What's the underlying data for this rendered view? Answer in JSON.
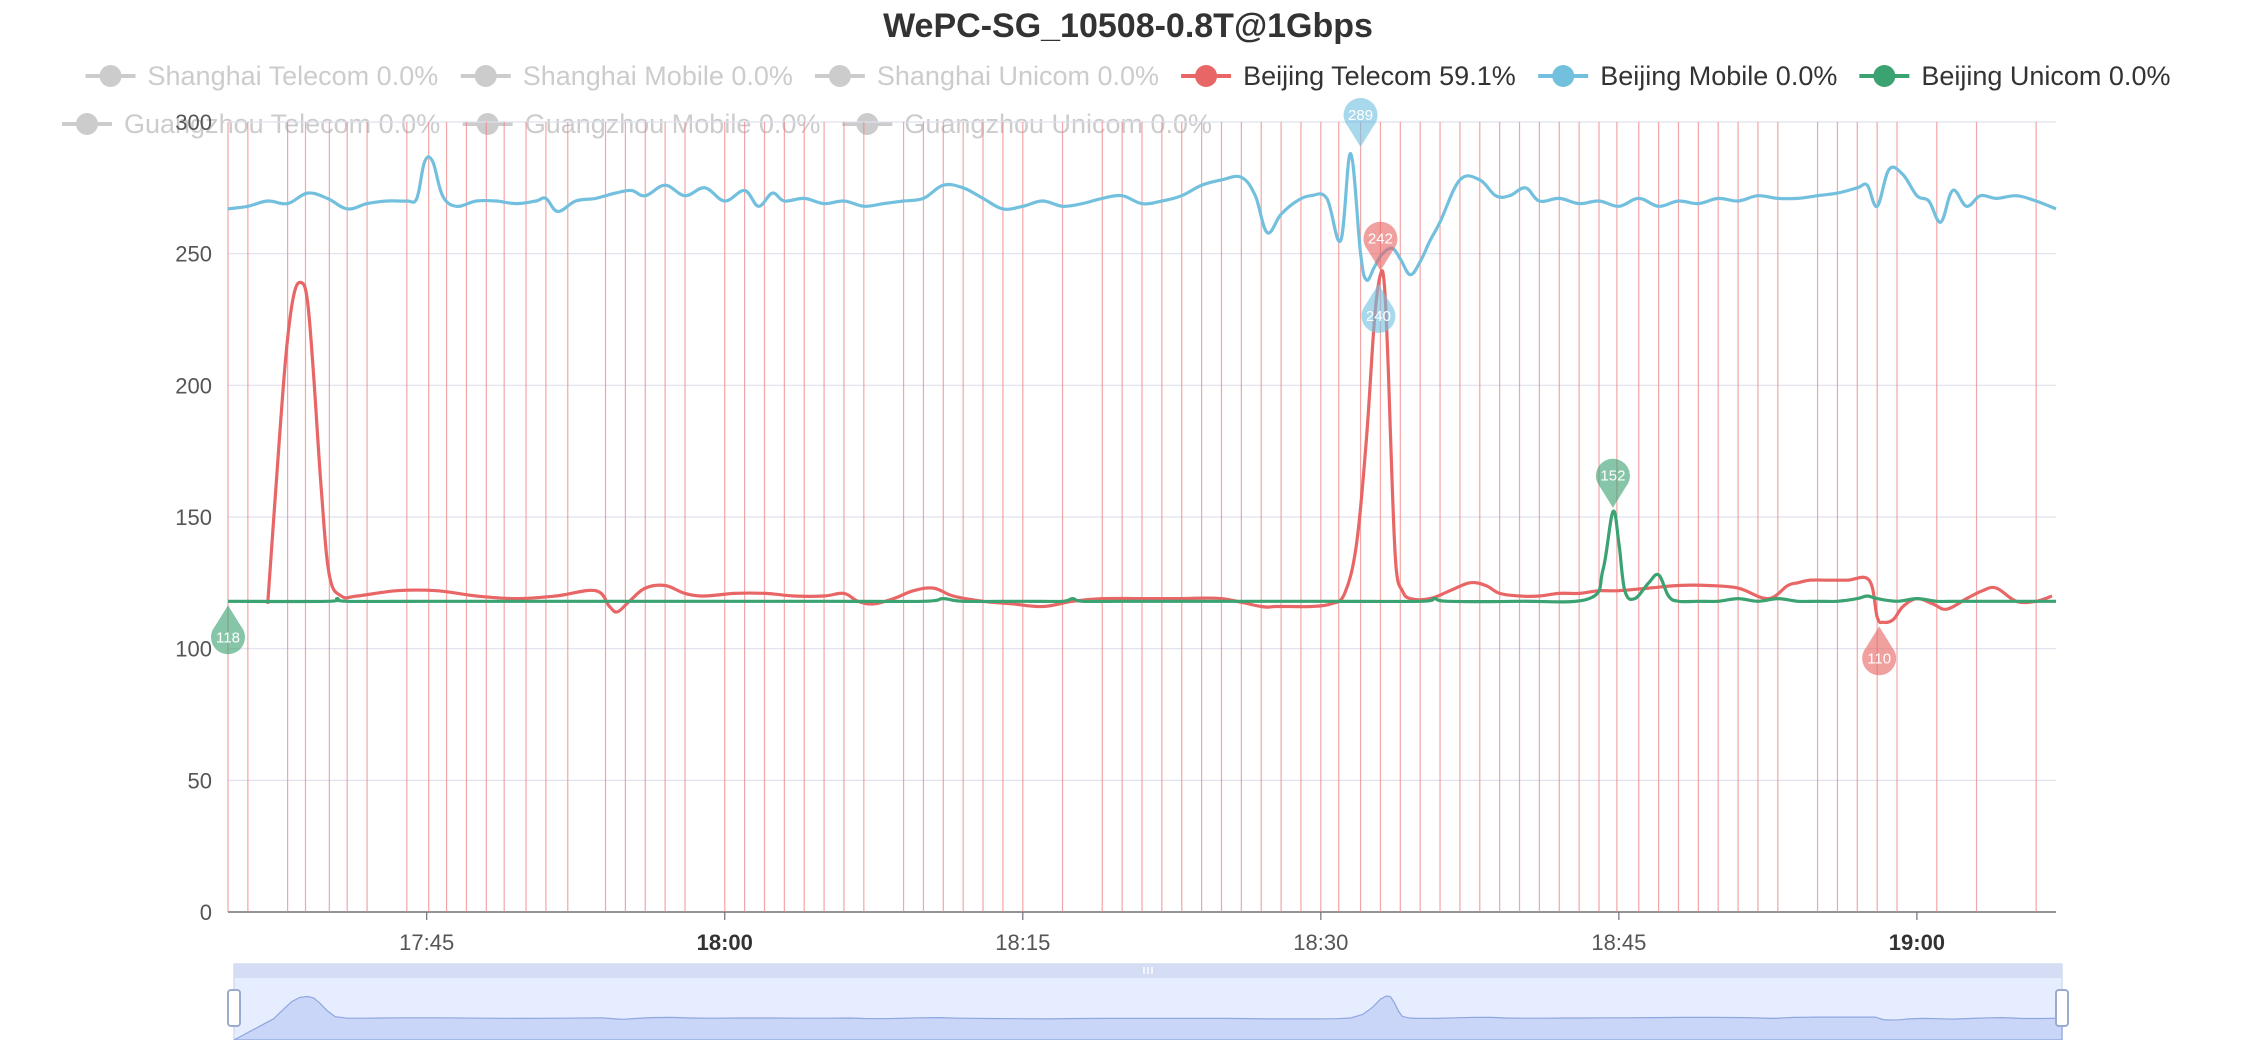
{
  "chart_data": {
    "type": "line",
    "title": "WePC-SG_10508-0.8T@1Gbps",
    "xlabel": "",
    "ylabel": "",
    "ylim": [
      0,
      300
    ],
    "yticks": [
      0,
      50,
      100,
      150,
      200,
      250,
      300
    ],
    "xlim_minutes": [
      1055,
      1147
    ],
    "xticks": [
      {
        "minute": 1065,
        "label": "17:45",
        "bold": false
      },
      {
        "minute": 1080,
        "label": "18:00",
        "bold": true
      },
      {
        "minute": 1095,
        "label": "18:15",
        "bold": false
      },
      {
        "minute": 1110,
        "label": "18:30",
        "bold": false
      },
      {
        "minute": 1125,
        "label": "18:45",
        "bold": false
      },
      {
        "minute": 1140,
        "label": "19:00",
        "bold": true
      }
    ],
    "grid": true,
    "legend_position": "top",
    "legend": [
      {
        "label": "Shanghai Telecom 0.0%",
        "color": "#cccccc",
        "active": false
      },
      {
        "label": "Shanghai Mobile 0.0%",
        "color": "#cccccc",
        "active": false
      },
      {
        "label": "Shanghai Unicom 0.0%",
        "color": "#cccccc",
        "active": false
      },
      {
        "label": "Beijing Telecom 59.1%",
        "color": "#e86666",
        "active": true
      },
      {
        "label": "Beijing Mobile 0.0%",
        "color": "#73c0de",
        "active": true
      },
      {
        "label": "Beijing Unicom 0.0%",
        "color": "#3ba272",
        "active": true
      },
      {
        "label": "Guangzhou Telecom 0.0%",
        "color": "#cccccc",
        "active": false
      },
      {
        "label": "Guangzhou Mobile 0.0%",
        "color": "#cccccc",
        "active": false
      },
      {
        "label": "Guangzhou Unicom 0.0%",
        "color": "#cccccc",
        "active": false
      }
    ],
    "loss_marker_minutes": [
      1055,
      1056,
      1058,
      1058.9,
      1060.1,
      1061,
      1062,
      1064,
      1065.1,
      1066,
      1067,
      1068,
      1068.9,
      1070,
      1071,
      1072.1,
      1074,
      1075,
      1076,
      1077,
      1078,
      1080,
      1081,
      1082,
      1083,
      1084,
      1085,
      1086,
      1087,
      1089,
      1090,
      1091,
      1092,
      1093,
      1094,
      1095,
      1097,
      1099,
      1100,
      1101,
      1102,
      1103,
      1104,
      1105,
      1106,
      1107,
      1108,
      1109,
      1110,
      1110.9,
      1112,
      1113,
      1114,
      1115,
      1116,
      1117,
      1118,
      1119,
      1120,
      1121,
      1122,
      1123,
      1124,
      1124.9,
      1126,
      1127,
      1128,
      1129,
      1130,
      1131,
      1132,
      1133,
      1135,
      1136,
      1137,
      1138,
      1139,
      1141,
      1143,
      1146
    ],
    "series": [
      {
        "name": "Beijing Telecom 59.1%",
        "color": "#e86666",
        "x": [
          1057.0,
          1057.4,
          1057.9,
          1058.3,
          1058.7,
          1059.0,
          1059.3,
          1059.7,
          1060.1,
          1060.7,
          1061.5,
          1063.5,
          1065.5,
          1067.5,
          1069.5,
          1071.5,
          1073.5,
          1074.2,
          1074.6,
          1075.2,
          1076.0,
          1077.0,
          1078.0,
          1079.0,
          1080.5,
          1082.0,
          1083.5,
          1085.0,
          1086.0,
          1086.7,
          1087.5,
          1088.5,
          1089.5,
          1090.5,
          1091.5,
          1093.0,
          1094.5,
          1096.0,
          1097.5,
          1099.0,
          1101.0,
          1103.0,
          1105.0,
          1107.0,
          1107.7,
          1108.5,
          1109.5,
          1110.5,
          1111.2,
          1111.8,
          1112.3,
          1112.7,
          1113.0,
          1113.2,
          1113.4,
          1113.6,
          1113.8,
          1114.1,
          1114.5,
          1115.5,
          1116.5,
          1117.5,
          1118.3,
          1119.0,
          1120.0,
          1121.0,
          1122.0,
          1123.0,
          1124.0,
          1125.0,
          1126.5,
          1128.0,
          1129.5,
          1131.0,
          1132.5,
          1133.5,
          1134.0,
          1134.6,
          1135.5,
          1136.5,
          1137.6,
          1138.0,
          1138.3,
          1138.8,
          1139.3,
          1140.0,
          1140.8,
          1141.5,
          1142.5,
          1143.3,
          1144.0,
          1145.0,
          1146.0,
          1146.8
        ],
        "values": [
          117,
          160,
          210,
          234,
          239,
          232,
          205,
          160,
          128,
          120,
          120,
          122,
          122,
          120,
          119,
          120,
          122,
          116,
          114,
          118,
          123,
          124,
          121,
          120,
          121,
          121,
          120,
          120,
          121,
          118,
          117,
          119,
          122,
          123,
          120,
          118,
          117,
          116,
          118,
          119,
          119,
          119,
          119,
          116,
          116,
          116,
          116,
          117,
          121,
          140,
          180,
          225,
          242,
          238,
          205,
          160,
          130,
          122,
          119,
          119,
          122,
          125,
          124,
          121,
          120,
          120,
          121,
          121,
          122,
          122,
          123,
          124,
          124,
          123,
          119,
          124,
          125,
          126,
          126,
          126,
          126,
          112,
          110,
          111,
          116,
          119,
          117,
          115,
          119,
          122,
          123,
          118,
          118,
          120
        ]
      },
      {
        "name": "Beijing Mobile 0.0%",
        "color": "#73c0de",
        "x": [
          1055.0,
          1056.0,
          1057.0,
          1058.0,
          1059.0,
          1060.0,
          1061.0,
          1062.0,
          1063.0,
          1064.0,
          1064.5,
          1064.9,
          1065.3,
          1065.8,
          1066.5,
          1067.5,
          1068.5,
          1069.5,
          1070.5,
          1071.0,
          1071.6,
          1072.5,
          1073.5,
          1074.5,
          1075.3,
          1076.0,
          1077.0,
          1078.0,
          1079.0,
          1080.0,
          1081.0,
          1081.7,
          1082.4,
          1083.0,
          1084.0,
          1085.0,
          1086.0,
          1087.0,
          1088.0,
          1089.0,
          1090.0,
          1091.0,
          1092.0,
          1093.0,
          1094.0,
          1095.0,
          1096.0,
          1097.0,
          1098.0,
          1099.0,
          1100.0,
          1101.0,
          1102.0,
          1103.0,
          1104.0,
          1105.0,
          1106.0,
          1106.7,
          1107.3,
          1108.0,
          1108.8,
          1109.5,
          1110.3,
          1111.0,
          1111.5,
          1112.0,
          1112.3,
          1112.7,
          1113.1,
          1113.6,
          1114.0,
          1114.5,
          1115.0,
          1115.5,
          1116.0,
          1117.0,
          1118.0,
          1118.8,
          1119.5,
          1120.3,
          1121.0,
          1122.0,
          1123.0,
          1124.0,
          1125.0,
          1126.0,
          1127.0,
          1128.0,
          1129.0,
          1130.0,
          1131.0,
          1132.0,
          1133.0,
          1134.0,
          1135.0,
          1136.0,
          1137.0,
          1137.5,
          1138.0,
          1138.6,
          1139.3,
          1140.0,
          1140.6,
          1141.2,
          1141.8,
          1142.5,
          1143.2,
          1144.0,
          1145.0,
          1146.0,
          1147.0
        ],
        "values": [
          267,
          268,
          270,
          269,
          273,
          271,
          267,
          269,
          270,
          270,
          271,
          285,
          285,
          272,
          268,
          270,
          270,
          269,
          270,
          271,
          266,
          270,
          271,
          273,
          274,
          272,
          276,
          272,
          275,
          270,
          274,
          268,
          273,
          270,
          271,
          269,
          270,
          268,
          269,
          270,
          271,
          276,
          275,
          271,
          267,
          268,
          270,
          268,
          269,
          271,
          272,
          269,
          270,
          272,
          276,
          278,
          279,
          272,
          258,
          265,
          270,
          272,
          271,
          255,
          288,
          250,
          240,
          245,
          250,
          252,
          248,
          242,
          247,
          255,
          262,
          278,
          278,
          272,
          272,
          275,
          270,
          271,
          269,
          270,
          268,
          271,
          268,
          270,
          269,
          271,
          270,
          272,
          271,
          271,
          272,
          273,
          275,
          276,
          268,
          282,
          280,
          272,
          270,
          262,
          274,
          268,
          272,
          271,
          272,
          270,
          267
        ]
      },
      {
        "name": "Beijing Unicom 0.0%",
        "color": "#3ba272",
        "x": [
          1055.0,
          1060.0,
          1060.5,
          1061.0,
          1065.0,
          1070.0,
          1075.0,
          1080.0,
          1085.0,
          1090.0,
          1091.0,
          1092.0,
          1095.0,
          1097.0,
          1097.5,
          1098.0,
          1100.0,
          1105.0,
          1110.0,
          1115.0,
          1115.7,
          1116.4,
          1120.0,
          1123.5,
          1124.2,
          1124.7,
          1125.0,
          1125.3,
          1125.8,
          1126.5,
          1127.0,
          1127.5,
          1128.0,
          1129.0,
          1130.0,
          1131.0,
          1132.0,
          1133.0,
          1134.0,
          1135.0,
          1136.0,
          1137.0,
          1137.5,
          1138.0,
          1139.0,
          1140.0,
          1141.0,
          1142.0,
          1143.0,
          1144.0,
          1145.0,
          1147.0
        ],
        "values": [
          118,
          118,
          119,
          118,
          118,
          118,
          118,
          118,
          118,
          118,
          119,
          118,
          118,
          118,
          119,
          118,
          118,
          118,
          118,
          118,
          119,
          118,
          118,
          119,
          130,
          152,
          140,
          122,
          119,
          125,
          128,
          120,
          118,
          118,
          118,
          119,
          118,
          119,
          118,
          118,
          118,
          119,
          120,
          119,
          118,
          119,
          118,
          118,
          118,
          118,
          118,
          118
        ]
      }
    ],
    "markers": [
      {
        "series": "Beijing Unicom 0.0%",
        "x": 1055.0,
        "value": 118,
        "label": "118",
        "orientation": "up"
      },
      {
        "series": "Beijing Mobile 0.0%",
        "x": 1112.0,
        "value": 289,
        "label": "289",
        "orientation": "down"
      },
      {
        "series": "Beijing Mobile 0.0%",
        "x": 1112.9,
        "value": 240,
        "label": "240",
        "orientation": "up"
      },
      {
        "series": "Beijing Telecom 59.1%",
        "x": 1113.0,
        "value": 242,
        "label": "242",
        "orientation": "down"
      },
      {
        "series": "Beijing Unicom 0.0%",
        "x": 1124.7,
        "value": 152,
        "label": "152",
        "orientation": "down"
      },
      {
        "series": "Beijing Telecom 59.1%",
        "x": 1138.1,
        "value": 110,
        "label": "110",
        "orientation": "up"
      }
    ],
    "zoom_slider": {
      "start_percent": 0,
      "end_percent": 100
    }
  }
}
